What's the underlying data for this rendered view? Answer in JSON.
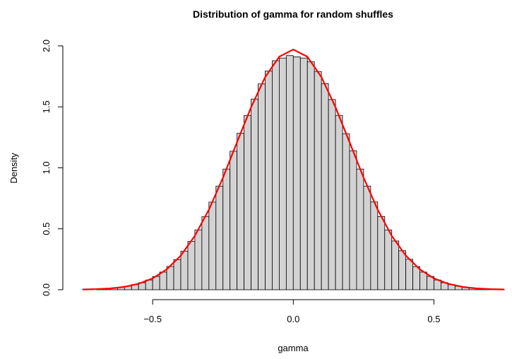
{
  "chart_data": {
    "type": "histogram",
    "title": "Distribution of gamma for random shuffles",
    "x_label": "gamma",
    "y_label": "Density",
    "bins": [
      -0.7,
      -0.675,
      -0.65,
      -0.625,
      -0.6,
      -0.575,
      -0.55,
      -0.525,
      -0.5,
      -0.475,
      -0.45,
      -0.425,
      -0.4,
      -0.375,
      -0.35,
      -0.325,
      -0.3,
      -0.275,
      -0.25,
      -0.225,
      -0.2,
      -0.175,
      -0.15,
      -0.125,
      -0.1,
      -0.075,
      -0.05,
      -0.025,
      0,
      0.025,
      0.05,
      0.075,
      0.1,
      0.125,
      0.15,
      0.175,
      0.2,
      0.225,
      0.25,
      0.275,
      0.3,
      0.325,
      0.35,
      0.375,
      0.4,
      0.425,
      0.45,
      0.475,
      0.5,
      0.525,
      0.55,
      0.575,
      0.6,
      0.625,
      0.65,
      0.675,
      0.7,
      0.725,
      0.75
    ],
    "values": [
      0.006,
      0.009,
      0.014,
      0.02,
      0.029,
      0.042,
      0.058,
      0.08,
      0.109,
      0.145,
      0.191,
      0.247,
      0.316,
      0.397,
      0.491,
      0.599,
      0.719,
      0.85,
      0.99,
      1.136,
      1.283,
      1.428,
      1.564,
      1.688,
      1.794,
      1.878,
      1.9,
      1.92,
      1.91,
      1.9,
      1.87,
      1.79,
      1.69,
      1.56,
      1.43,
      1.28,
      1.14,
      0.99,
      0.85,
      0.72,
      0.6,
      0.49,
      0.4,
      0.32,
      0.25,
      0.19,
      0.145,
      0.109,
      0.08,
      0.058,
      0.042,
      0.029,
      0.02,
      0.014,
      0.009,
      0.006,
      0.004,
      0.002
    ],
    "color": "#d3d3d3",
    "curve": {
      "color": "#ff0000",
      "x": [
        -0.75,
        -0.7,
        -0.65,
        -0.6,
        -0.55,
        -0.5,
        -0.45,
        -0.4,
        -0.35,
        -0.3,
        -0.25,
        -0.2,
        -0.15,
        -0.1,
        -0.05,
        0,
        0.05,
        0.1,
        0.15,
        0.2,
        0.25,
        0.3,
        0.35,
        0.4,
        0.45,
        0.5,
        0.55,
        0.6,
        0.65,
        0.7,
        0.75
      ],
      "y": [
        0.002,
        0.005,
        0.011,
        0.024,
        0.049,
        0.093,
        0.167,
        0.28,
        0.442,
        0.657,
        0.919,
        1.21,
        1.497,
        1.744,
        1.911,
        1.97,
        1.911,
        1.744,
        1.497,
        1.21,
        0.919,
        0.657,
        0.442,
        0.28,
        0.167,
        0.093,
        0.049,
        0.024,
        0.011,
        0.005,
        0.002
      ]
    },
    "xlim": [
      -0.76,
      0.78
    ],
    "ylim": [
      0,
      2.04
    ],
    "xticks": [
      {
        "value": -0.5,
        "label": "−0.5"
      },
      {
        "value": 0,
        "label": "0.0"
      },
      {
        "value": 0.5,
        "label": "0.5"
      }
    ],
    "yticks": [
      {
        "value": 0,
        "label": "0.0"
      },
      {
        "value": 0.5,
        "label": "0.5"
      },
      {
        "value": 1,
        "label": "1.0"
      },
      {
        "value": 1.5,
        "label": "1.5"
      },
      {
        "value": 2,
        "label": "2.0"
      }
    ]
  }
}
